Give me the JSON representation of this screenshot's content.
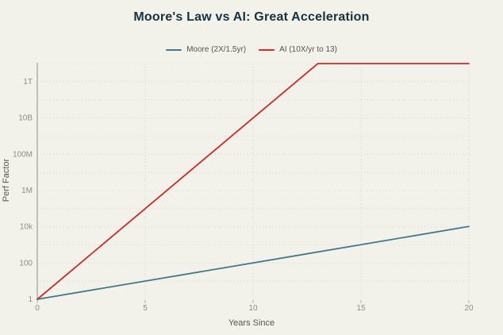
{
  "chart_data": {
    "type": "line",
    "title": "Moore's Law vs AI: Great Acceleration",
    "xlabel": "Years Since",
    "ylabel": "Perf Factor",
    "x_ticks": [
      0,
      5,
      10,
      15,
      20
    ],
    "xlim": [
      0,
      20
    ],
    "y_scale": "log",
    "ylim_exponents": [
      0,
      13
    ],
    "y_tick_labels": [
      "1",
      "100",
      "10k",
      "1M",
      "100M",
      "10B",
      "1T"
    ],
    "y_tick_exponents": [
      0,
      2,
      4,
      6,
      8,
      10,
      12
    ],
    "grid": "dotted horizontal line every decade, dotted vertical line at each x tick",
    "legend_position": "top-center",
    "series": [
      {
        "name": "Moore (2X/1.5yr)",
        "color": "#41788a",
        "points": [
          [
            0,
            1
          ],
          [
            20,
            10321
          ]
        ]
      },
      {
        "name": "AI (10X/yr to 13)",
        "color": "#d02b24",
        "points": [
          [
            0,
            1
          ],
          [
            13,
            10000000000000.0
          ],
          [
            20,
            10000000000000.0
          ]
        ]
      }
    ],
    "colors": {
      "background": "#f2f1ea",
      "title_text": "#16323e",
      "tick_text": "#8f8d85",
      "axis_label_text": "#57554d",
      "gridline": "#dbd9cd",
      "axis_line": "#8e8e86"
    }
  }
}
